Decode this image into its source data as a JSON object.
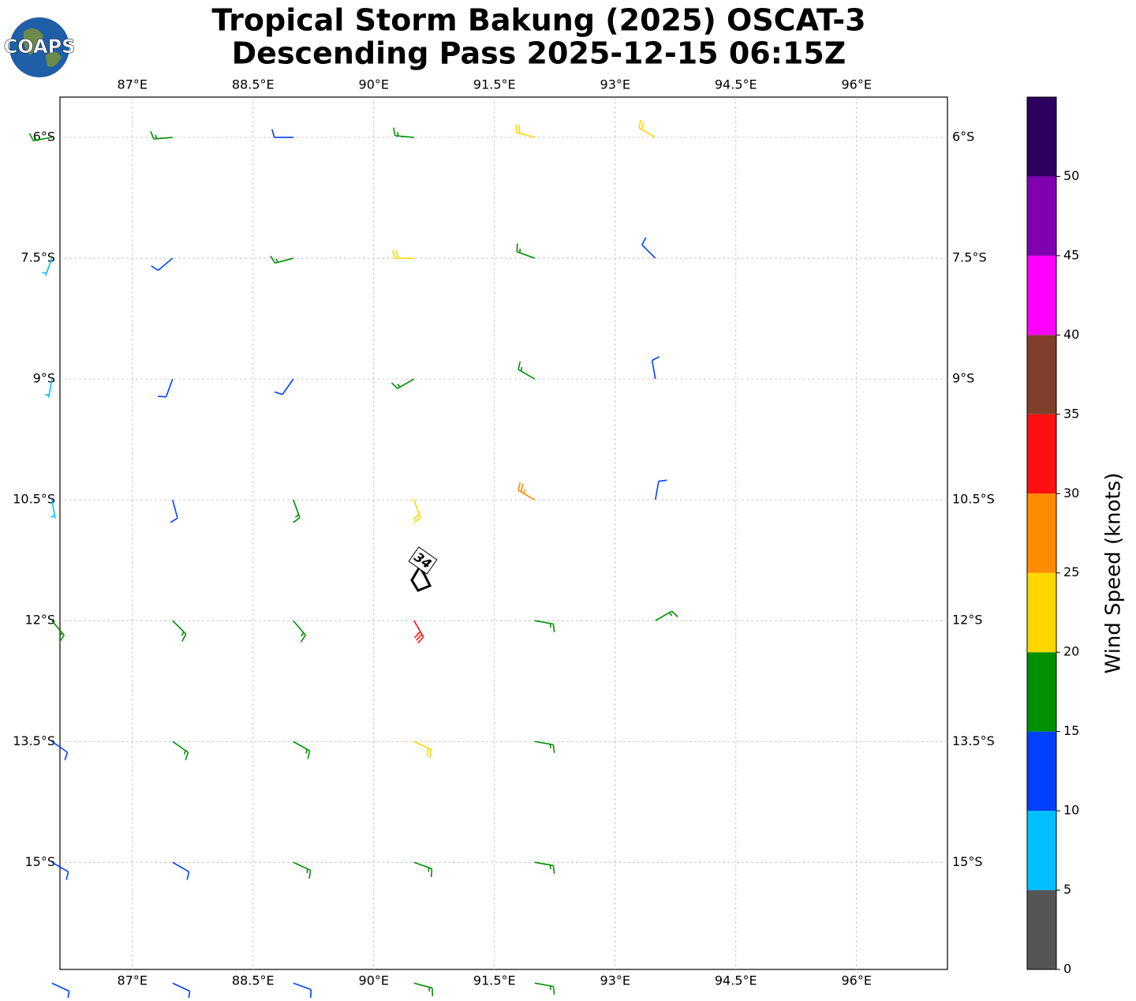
{
  "logo": {
    "text": "COAPS"
  },
  "chart_data": {
    "type": "barbs",
    "title": "Tropical Storm Bakung (2025) OSCAT-3",
    "subtitle": "Descending Pass 2025-12-15 06:15Z",
    "xlim": [
      86.1,
      97.13
    ],
    "ylim": [
      -16.33,
      -5.5
    ],
    "xticks": [
      {
        "value": 87,
        "label": "87°E"
      },
      {
        "value": 88.5,
        "label": "88.5°E"
      },
      {
        "value": 90,
        "label": "90°E"
      },
      {
        "value": 91.5,
        "label": "91.5°E"
      },
      {
        "value": 93,
        "label": "93°E"
      },
      {
        "value": 94.5,
        "label": "94.5°E"
      },
      {
        "value": 96,
        "label": "96°E"
      }
    ],
    "yticks": [
      {
        "value": -6,
        "label": "6°S"
      },
      {
        "value": -7.5,
        "label": "7.5°S"
      },
      {
        "value": -9,
        "label": "9°S"
      },
      {
        "value": -10.5,
        "label": "10.5°S"
      },
      {
        "value": -12,
        "label": "12°S"
      },
      {
        "value": -13.5,
        "label": "13.5°S"
      },
      {
        "value": -15,
        "label": "15°S"
      }
    ],
    "grid": true,
    "annotation": "34",
    "barbs": {
      "lon": [
        86,
        87.5,
        89,
        90.5,
        92,
        93.5,
        86,
        87.5,
        89,
        90.5,
        92,
        93.5,
        86,
        87.5,
        89,
        90.5,
        92,
        93.5,
        86,
        87.5,
        89,
        90.5,
        92,
        93.5,
        86,
        87.5,
        89,
        90.5,
        92,
        93.5,
        86,
        87.5,
        89,
        90.5,
        92,
        86,
        87.5,
        89,
        90.5,
        92,
        86,
        87.5,
        89,
        90.5,
        92
      ],
      "lat": [
        -6,
        -6,
        -6,
        -6,
        -6,
        -6,
        -7.5,
        -7.5,
        -7.5,
        -7.5,
        -7.5,
        -7.5,
        -9,
        -9,
        -9,
        -9,
        -9,
        -9,
        -10.5,
        -10.5,
        -10.5,
        -10.5,
        -10.5,
        -10.5,
        -12,
        -12,
        -12,
        -12,
        -12,
        -12,
        -13.5,
        -13.5,
        -13.5,
        -13.5,
        -13.5,
        -15,
        -15,
        -15,
        -15,
        -15,
        -16.5,
        -16.5,
        -16.5,
        -16.5,
        -16.5
      ],
      "speed": [
        15,
        17,
        12,
        18,
        22,
        20,
        8,
        12,
        18,
        22,
        17,
        12,
        7,
        12,
        14,
        18,
        18,
        13,
        8,
        12,
        17,
        22,
        25,
        13,
        17,
        17,
        18,
        32,
        18,
        16,
        13,
        17,
        18,
        22,
        18,
        12,
        12,
        17,
        17,
        17,
        12,
        12,
        14,
        17,
        17
      ],
      "direction": [
        260,
        265,
        270,
        275,
        285,
        300,
        200,
        230,
        255,
        270,
        290,
        315,
        190,
        200,
        215,
        240,
        300,
        350,
        170,
        165,
        160,
        160,
        300,
        10,
        140,
        135,
        140,
        150,
        100,
        60,
        125,
        125,
        120,
        115,
        100,
        120,
        120,
        115,
        110,
        100,
        115,
        115,
        110,
        105,
        100
      ]
    },
    "colorbar": {
      "label": "Wind Speed (knots)",
      "bounds": [
        0,
        5,
        10,
        15,
        20,
        25,
        30,
        35,
        40,
        45,
        50,
        55
      ],
      "colors": [
        "#555555",
        "#00bfff",
        "#0040ff",
        "#009000",
        "#ffd700",
        "#ff8c00",
        "#ff1010",
        "#7f3f2a",
        "#ff00ff",
        "#8000b0",
        "#2d0060"
      ],
      "ticks": [
        0,
        5,
        10,
        15,
        20,
        25,
        30,
        35,
        40,
        45,
        50
      ]
    }
  }
}
